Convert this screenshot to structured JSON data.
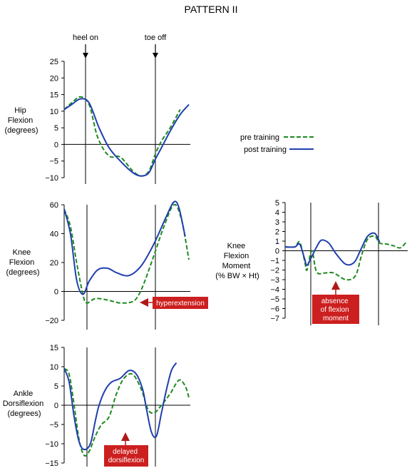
{
  "title": "PATTERN II",
  "events": {
    "heel_on": "heel on",
    "toe_off": "toe off"
  },
  "legend": {
    "pre": "pre training",
    "post": "post training"
  },
  "colors": {
    "pre": "#1e8a1e",
    "post": "#1f3fae",
    "annotation_bg": "#cc1f1f",
    "annotation_arrow": "#b01818"
  },
  "panel_labels": {
    "hip": [
      "Hip",
      "Flexion",
      "(degrees)"
    ],
    "knee": [
      "Knee",
      "Flexion",
      "(degrees)"
    ],
    "moment": [
      "Knee",
      "Flexion",
      "Moment",
      "(% BW × Ht)"
    ],
    "ankle": [
      "Ankle",
      "Dorsiflexion",
      "(degrees)"
    ]
  },
  "annotations": {
    "hyperextension": [
      "hyperextension"
    ],
    "absence": [
      "absence",
      "of flexion",
      "moment"
    ],
    "delayed": [
      "delayed",
      "dorsiflexion"
    ]
  },
  "chart_data": [
    {
      "id": "hip",
      "type": "line",
      "ylim": [
        -10,
        25
      ],
      "yticks": [
        25,
        20,
        15,
        10,
        5,
        0,
        -5,
        -10
      ],
      "series": [
        {
          "name": "pre training",
          "x": [
            0,
            0.06,
            0.13,
            0.2,
            0.27,
            0.36,
            0.45,
            0.55,
            0.62,
            0.68,
            0.73,
            0.78,
            0.85,
            0.93
          ],
          "y": [
            10.5,
            12.5,
            14.3,
            12,
            2,
            -3.5,
            -3.8,
            -8,
            -9.5,
            -8,
            -3,
            1,
            5,
            10.5
          ]
        },
        {
          "name": "post training",
          "x": [
            0,
            0.06,
            0.13,
            0.2,
            0.28,
            0.36,
            0.45,
            0.55,
            0.62,
            0.68,
            0.73,
            0.78,
            0.85,
            0.93,
            1.0
          ],
          "y": [
            10.5,
            12,
            13.7,
            12.5,
            5,
            -1,
            -5,
            -8.5,
            -9.5,
            -8.5,
            -4.5,
            -1,
            4,
            9,
            12
          ]
        }
      ]
    },
    {
      "id": "knee",
      "type": "line",
      "ylim": [
        -20,
        60
      ],
      "yticks": [
        60,
        40,
        20,
        0,
        -20
      ],
      "series": [
        {
          "name": "pre training",
          "x": [
            0,
            0.05,
            0.1,
            0.15,
            0.18,
            0.25,
            0.35,
            0.45,
            0.55,
            0.6,
            0.65,
            0.72,
            0.8,
            0.88,
            0.94,
            1.0
          ],
          "y": [
            57,
            45,
            20,
            -2,
            -8,
            -5,
            -6,
            -8,
            -7,
            -2,
            8,
            25,
            45,
            60,
            50,
            22
          ]
        },
        {
          "name": "post training",
          "x": [
            0,
            0.05,
            0.1,
            0.15,
            0.2,
            0.27,
            0.35,
            0.42,
            0.52,
            0.62,
            0.72,
            0.82,
            0.88,
            0.92,
            0.97
          ],
          "y": [
            57,
            40,
            8,
            -2,
            7,
            15,
            16,
            13,
            11,
            18,
            33,
            52,
            62,
            58,
            38
          ]
        }
      ]
    },
    {
      "id": "moment",
      "type": "line",
      "ylim": [
        -7,
        5
      ],
      "yticks": [
        5,
        4,
        3,
        2,
        1,
        0,
        -1,
        -2,
        -3,
        -4,
        -5,
        -6,
        -7
      ],
      "series": [
        {
          "name": "pre training",
          "x": [
            0,
            0.08,
            0.12,
            0.16,
            0.18,
            0.22,
            0.26,
            0.33,
            0.4,
            0.5,
            0.58,
            0.63,
            0.68,
            0.74,
            0.78,
            0.84,
            0.9,
            0.95,
            1.0
          ],
          "y": [
            0.4,
            0.4,
            0.9,
            -1,
            -2,
            0,
            -2.2,
            -2.3,
            -2.3,
            -3,
            -2.6,
            -0.5,
            1.2,
            1.5,
            0.8,
            0.7,
            0.5,
            0.3,
            0.9
          ]
        },
        {
          "name": "post training",
          "x": [
            0,
            0.08,
            0.12,
            0.16,
            0.18,
            0.22,
            0.26,
            0.3,
            0.36,
            0.42,
            0.5,
            0.57,
            0.62,
            0.68,
            0.74,
            0.78
          ],
          "y": [
            0.4,
            0.4,
            0.7,
            -0.8,
            -1.5,
            -0.6,
            0.4,
            1.1,
            0.8,
            -0.3,
            -1.4,
            -1.2,
            0,
            1.5,
            1.8,
            0.9
          ]
        }
      ]
    },
    {
      "id": "ankle",
      "type": "line",
      "ylim": [
        -15,
        15
      ],
      "yticks": [
        15,
        10,
        5,
        0,
        -5,
        -10,
        -15
      ],
      "series": [
        {
          "name": "pre training",
          "x": [
            0,
            0.04,
            0.08,
            0.12,
            0.16,
            0.2,
            0.25,
            0.3,
            0.36,
            0.42,
            0.48,
            0.55,
            0.62,
            0.67,
            0.72,
            0.78,
            0.85,
            0.92,
            0.97,
            1.0
          ],
          "y": [
            9.5,
            8,
            0,
            -9,
            -13,
            -12,
            -8,
            -5,
            -3,
            3,
            7,
            8,
            4,
            -1,
            -2,
            0,
            3,
            6.5,
            5,
            2
          ]
        },
        {
          "name": "post training",
          "x": [
            0,
            0.04,
            0.08,
            0.12,
            0.16,
            0.21,
            0.25,
            0.28,
            0.33,
            0.38,
            0.45,
            0.52,
            0.58,
            0.63,
            0.66,
            0.7,
            0.74,
            0.78,
            0.82,
            0.86,
            0.9
          ],
          "y": [
            9.5,
            6,
            -3,
            -9.5,
            -11.5,
            -10,
            -4,
            0,
            4,
            6,
            7,
            9,
            8,
            4,
            -1,
            -7,
            -8,
            -2,
            4,
            9,
            11
          ]
        }
      ]
    }
  ]
}
